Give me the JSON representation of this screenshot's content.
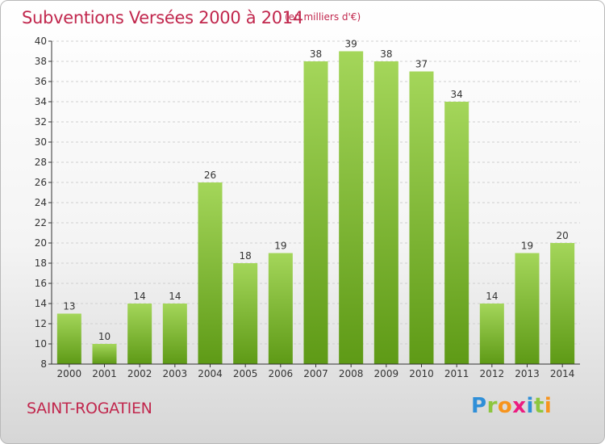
{
  "header": {
    "title": "Subventions Versées 2000 à 2014",
    "unit": "(en milliers d'€)"
  },
  "footer": {
    "commune": "SAINT-ROGATIEN",
    "logo": [
      "P",
      "r",
      "o",
      "x",
      "i",
      "t",
      "i"
    ],
    "logo_colors": [
      "#2f8fd8",
      "#8dc63f",
      "#f7941d",
      "#ec1c80",
      "#2f8fd8",
      "#8dc63f",
      "#f7941d"
    ]
  },
  "colors": {
    "title": "#c1274d",
    "bar_light": "#a4d65a",
    "bar_dark": "#5e9a16",
    "grid": "#cfcfcf",
    "axis": "#333333"
  },
  "chart_data": {
    "type": "bar",
    "categories": [
      "2000",
      "2001",
      "2002",
      "2003",
      "2004",
      "2005",
      "2006",
      "2007",
      "2008",
      "2009",
      "2010",
      "2011",
      "2012",
      "2013",
      "2014"
    ],
    "values": [
      13,
      10,
      14,
      14,
      26,
      18,
      19,
      38,
      39,
      38,
      37,
      34,
      14,
      19,
      20
    ],
    "title": "Subventions Versées 2000 à 2014",
    "ylabel": "(en milliers d'€)",
    "ylim": [
      8,
      40
    ],
    "yticks": [
      8,
      10,
      12,
      14,
      16,
      18,
      20,
      22,
      24,
      26,
      28,
      30,
      32,
      34,
      36,
      38,
      40
    ],
    "grid": "horizontal dashed",
    "legend": "none"
  }
}
